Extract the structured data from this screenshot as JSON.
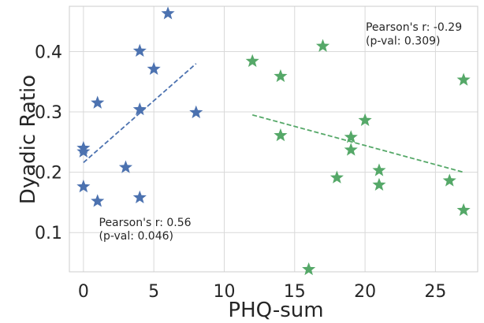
{
  "chart_data": {
    "type": "scatter",
    "xlabel": "PHQ-sum",
    "ylabel": "Dyadic Ratio",
    "xlim": [
      -1,
      28
    ],
    "ylim": [
      0.035,
      0.475
    ],
    "xticks": [
      0,
      5,
      10,
      15,
      20,
      25
    ],
    "yticks": [
      0.1,
      0.2,
      0.3,
      0.4
    ],
    "xtick_labels": [
      "0",
      "5",
      "10",
      "15",
      "20",
      "25"
    ],
    "ytick_labels": [
      "0.1",
      "0.2",
      "0.3",
      "0.4"
    ],
    "grid": true,
    "series": [
      {
        "color": "#4c72b0",
        "marker": "star",
        "points": [
          {
            "x": 6,
            "y": 0.463
          },
          {
            "x": 4,
            "y": 0.401
          },
          {
            "x": 5,
            "y": 0.371
          },
          {
            "x": 1,
            "y": 0.315
          },
          {
            "x": 4,
            "y": 0.304
          },
          {
            "x": 8,
            "y": 0.299
          },
          {
            "x": 0,
            "y": 0.24
          },
          {
            "x": 0,
            "y": 0.234
          },
          {
            "x": 3,
            "y": 0.208
          },
          {
            "x": 0,
            "y": 0.176
          },
          {
            "x": 4,
            "y": 0.158
          },
          {
            "x": 1,
            "y": 0.152
          }
        ],
        "trendline": {
          "x": [
            0,
            8
          ],
          "y": [
            0.216,
            0.38
          ]
        }
      },
      {
        "color": "#55a868",
        "marker": "star",
        "points": [
          {
            "x": 17,
            "y": 0.409
          },
          {
            "x": 12,
            "y": 0.384
          },
          {
            "x": 14,
            "y": 0.359
          },
          {
            "x": 27,
            "y": 0.353
          },
          {
            "x": 20,
            "y": 0.286
          },
          {
            "x": 14,
            "y": 0.261
          },
          {
            "x": 19,
            "y": 0.258
          },
          {
            "x": 19,
            "y": 0.237
          },
          {
            "x": 21,
            "y": 0.203
          },
          {
            "x": 18,
            "y": 0.191
          },
          {
            "x": 26,
            "y": 0.186
          },
          {
            "x": 21,
            "y": 0.179
          },
          {
            "x": 27,
            "y": 0.137
          },
          {
            "x": 16,
            "y": 0.039
          }
        ],
        "trendline": {
          "x": [
            12,
            27
          ],
          "y": [
            0.295,
            0.2
          ]
        }
      }
    ],
    "annotations": [
      {
        "text": "Pearson's r: 0.56",
        "x": 1.1,
        "y": 0.1105
      },
      {
        "text": " (p-val: 0.046)",
        "x": 1.1,
        "y": 0.0885
      },
      {
        "text": "Pearson's r: -0.29",
        "x": 20.05,
        "y": 0.4345
      },
      {
        "text": " (p-val: 0.309)",
        "x": 20.05,
        "y": 0.4115
      }
    ]
  }
}
